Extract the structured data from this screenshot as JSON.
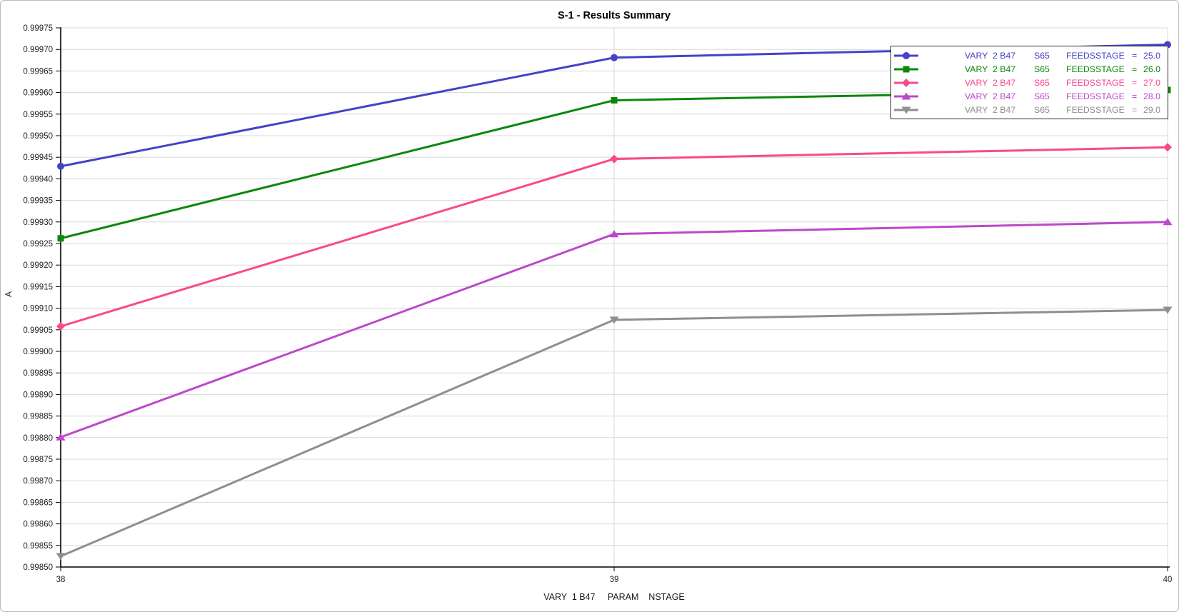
{
  "figure": {
    "title": "S-1 - Results Summary"
  },
  "chart_data": {
    "type": "line",
    "title": "S-1 - Results Summary",
    "xlabel": "VARY  1 B47     PARAM    NSTAGE",
    "ylabel": "A",
    "x": [
      38,
      39,
      40
    ],
    "xlim": [
      38,
      40
    ],
    "ylim": [
      0.9985,
      0.99975
    ],
    "ytick_step": 5e-05,
    "ytick_decimals": 5,
    "grid": true,
    "legend_position": "top-right",
    "colors": {
      "grid": "#d8d8d8",
      "axis": "#000000",
      "background": "#ffffff"
    },
    "series": [
      {
        "id": "feedsstage-25",
        "name": "VARY  2 B47  S65  FEEDSSTAGE  =  25.0",
        "legend_columns": [
          "VARY",
          "2 B47",
          "S65",
          "FEEDSSTAGE",
          "=",
          "25.0"
        ],
        "color": "#4543c6",
        "marker": "circle",
        "values": [
          0.999429,
          0.999681,
          0.999711
        ]
      },
      {
        "id": "feedsstage-26",
        "name": "VARY  2 B47  S65  FEEDSSTAGE  =  26.0",
        "legend_columns": [
          "VARY",
          "2 B47",
          "S65",
          "FEEDSSTAGE",
          "=",
          "26.0"
        ],
        "color": "#0c870c",
        "marker": "square",
        "values": [
          0.999262,
          0.999582,
          0.999606
        ]
      },
      {
        "id": "feedsstage-27",
        "name": "VARY  2 B47  S65  FEEDSSTAGE  =  27.0",
        "legend_columns": [
          "VARY",
          "2 B47",
          "S65",
          "FEEDSSTAGE",
          "=",
          "27.0"
        ],
        "color": "#f9498d",
        "marker": "diamond",
        "values": [
          0.999058,
          0.999446,
          0.999473
        ]
      },
      {
        "id": "feedsstage-28",
        "name": "VARY  2 B47  S65  FEEDSSTAGE  =  28.0",
        "legend_columns": [
          "VARY",
          "2 B47",
          "S65",
          "FEEDSSTAGE",
          "=",
          "28.0"
        ],
        "color": "#bb49c9",
        "marker": "triangle-up",
        "values": [
          0.998801,
          0.999272,
          0.9993
        ]
      },
      {
        "id": "feedsstage-29",
        "name": "VARY  2 B47  S65  FEEDSSTAGE  =  29.0",
        "legend_columns": [
          "VARY",
          "2 B47",
          "S65",
          "FEEDSSTAGE",
          "=",
          "29.0"
        ],
        "color": "#8f8f8f",
        "marker": "triangle-down",
        "values": [
          0.998525,
          0.999073,
          0.999096
        ]
      }
    ]
  }
}
